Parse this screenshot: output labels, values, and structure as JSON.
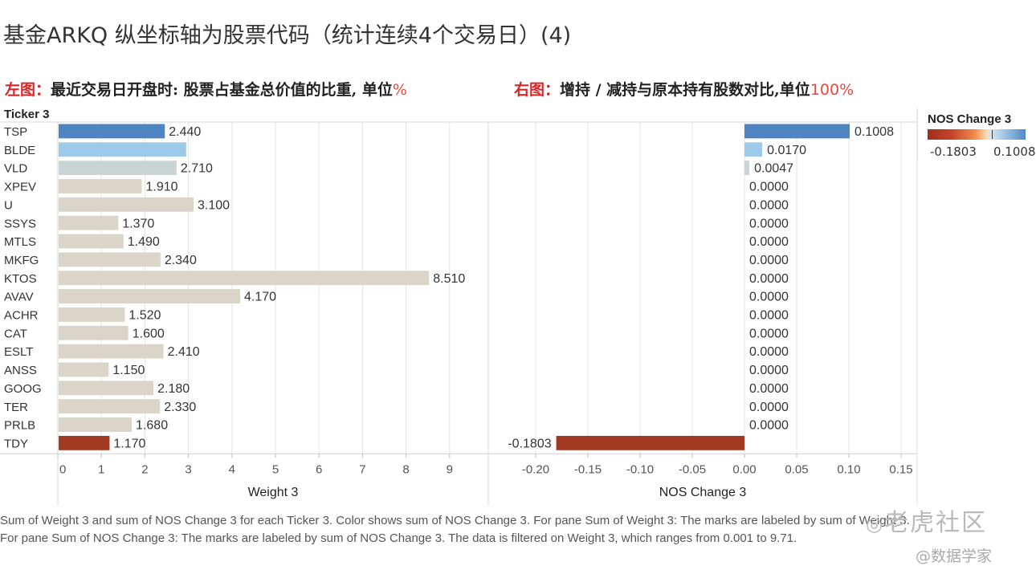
{
  "title": "基金ARKQ  纵坐标轴为股票代码（统计连续4个交易日）(4)",
  "left_note": {
    "label": "左图：",
    "text": "最近交易日开盘时: 股票占基金总价值的比重, 单位",
    "unit": "%"
  },
  "right_note": {
    "label": "右图：",
    "text": "增持 / 减持与原本持有股数对比,单位",
    "unit": "100%"
  },
  "legend": {
    "title": "NOS Change 3",
    "min_label": "-0.1803",
    "max_label": "0.1008"
  },
  "footnote": "Sum of Weight 3 and sum of NOS Change 3 for each Ticker 3.  Color shows sum of NOS Change 3.  For pane Sum of Weight 3:  The marks are labeled by sum of Weight 3.  For pane Sum of NOS Change 3:  The marks are labeled by sum of NOS Change 3. The data is filtered on Weight 3, which ranges from 0.001 to 9.71.",
  "watermark": {
    "brand": "老虎社区",
    "user": "@数据学家"
  },
  "colors": {
    "positive_high": "#4f84c2",
    "positive_mid": "#9ecae9",
    "positive_low": "#c8d4d6",
    "neutral": "#dbd5c9",
    "negative": "#a23a22",
    "grid": "#e4e4e4"
  },
  "chart_data": {
    "type": "bar",
    "row_header": "Ticker 3",
    "categories": [
      "TSP",
      "BLDE",
      "VLD",
      "XPEV",
      "U",
      "SSYS",
      "MTLS",
      "MKFG",
      "KTOS",
      "AVAV",
      "ACHR",
      "CAT",
      "ESLT",
      "ANSS",
      "GOOG",
      "TER",
      "PRLB",
      "TDY"
    ],
    "series": [
      {
        "name": "Weight 3",
        "values": [
          2.44,
          2.93,
          2.71,
          1.91,
          3.1,
          1.37,
          1.49,
          2.34,
          8.51,
          4.17,
          1.52,
          1.6,
          2.41,
          1.15,
          2.18,
          2.33,
          1.68,
          1.17
        ],
        "labels": [
          "2.440",
          "",
          "2.710",
          "1.910",
          "3.100",
          "1.370",
          "1.490",
          "2.340",
          "8.510",
          "4.170",
          "1.520",
          "1.600",
          "2.410",
          "1.150",
          "2.180",
          "2.330",
          "1.680",
          "1.170"
        ],
        "xlabel": "Weight 3",
        "xlim": [
          0,
          10
        ],
        "ticks": [
          0,
          1,
          2,
          3,
          4,
          5,
          6,
          7,
          8,
          9
        ]
      },
      {
        "name": "NOS Change 3",
        "values": [
          0.1008,
          0.017,
          0.0047,
          0,
          0,
          0,
          0,
          0,
          0,
          0,
          0,
          0,
          0,
          0,
          0,
          0,
          0,
          -0.1803
        ],
        "labels": [
          "0.1008",
          "0.0170",
          "0.0047",
          "0.0000",
          "0.0000",
          "0.0000",
          "0.0000",
          "0.0000",
          "0.0000",
          "0.0000",
          "0.0000",
          "0.0000",
          "0.0000",
          "0.0000",
          "0.0000",
          "0.0000",
          "0.0000",
          "-0.1803"
        ],
        "xlabel": "NOS Change 3",
        "xlim": [
          -0.23,
          0.16
        ],
        "ticks": [
          "-0.20",
          "-0.15",
          "-0.10",
          "-0.05",
          "0.00",
          "0.05",
          "0.10",
          "0.15"
        ]
      }
    ],
    "color_by": "NOS Change 3",
    "grid": true
  }
}
